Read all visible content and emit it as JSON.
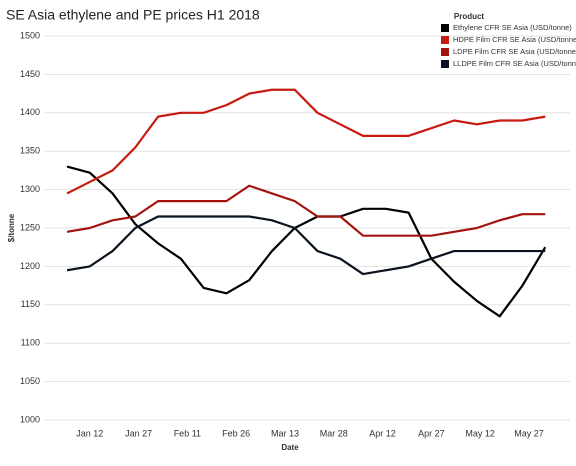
{
  "chart_data": {
    "type": "line",
    "title": "SE Asia ethylene and PE prices H1 2018",
    "x_label": "Date",
    "y_label": "$/tonne",
    "legend_title": "Product",
    "legend_position": "top-right",
    "grid": true,
    "x": [
      "Jan 5",
      "Jan 12",
      "Jan 19",
      "Jan 26",
      "Feb 2",
      "Feb 9",
      "Feb 16",
      "Feb 23",
      "Mar 2",
      "Mar 9",
      "Mar 16",
      "Mar 23",
      "Mar 30",
      "Apr 6",
      "Apr 13",
      "Apr 20",
      "Apr 27",
      "May 4",
      "May 11",
      "May 18",
      "May 25",
      "Jun 1"
    ],
    "xlim": [
      "Jan 1",
      "Jun 8"
    ],
    "xticks": [
      "Jan 12",
      "Jan 27",
      "Feb 11",
      "Feb 26",
      "Mar 13",
      "Mar 28",
      "Apr 12",
      "Apr 27",
      "May 12",
      "May 27"
    ],
    "ylim": [
      1000,
      1500
    ],
    "yticks": [
      1000,
      1050,
      1100,
      1150,
      1200,
      1250,
      1300,
      1350,
      1400,
      1450,
      1500
    ],
    "series": [
      {
        "name": "Ethylene CFR SE Asia  (USD/tonne)",
        "color": "#000000",
        "values": [
          1330,
          1322,
          1295,
          1255,
          1230,
          1210,
          1172,
          1165,
          1182,
          1220,
          1250,
          1265,
          1265,
          1275,
          1275,
          1270,
          1210,
          1180,
          1155,
          1135,
          1175,
          1225
        ]
      },
      {
        "name": "HDPE Film CFR SE Asia (USD/tonne)",
        "color": "#c8190f",
        "values": [
          1295,
          1310,
          1325,
          1355,
          1395,
          1400,
          1400,
          1410,
          1425,
          1430,
          1430,
          1400,
          1385,
          1370,
          1370,
          1370,
          1380,
          1390,
          1385,
          1390,
          1390,
          1395
        ]
      },
      {
        "name": "LDPE Film CFR SE Asia (USD/tonne)",
        "color": "#a3140e",
        "values": [
          1245,
          1250,
          1260,
          1265,
          1285,
          1285,
          1285,
          1285,
          1305,
          1295,
          1285,
          1265,
          1265,
          1240,
          1240,
          1240,
          1240,
          1245,
          1250,
          1260,
          1268,
          1268
        ]
      },
      {
        "name": "LLDPE Film CFR SE Asia (USD/tonne)",
        "color": "#0a1420",
        "values": [
          1195,
          1200,
          1220,
          1250,
          1265,
          1265,
          1265,
          1265,
          1265,
          1260,
          1250,
          1220,
          1210,
          1190,
          1195,
          1200,
          1210,
          1220,
          1220,
          1220,
          1220,
          1220
        ]
      }
    ]
  }
}
